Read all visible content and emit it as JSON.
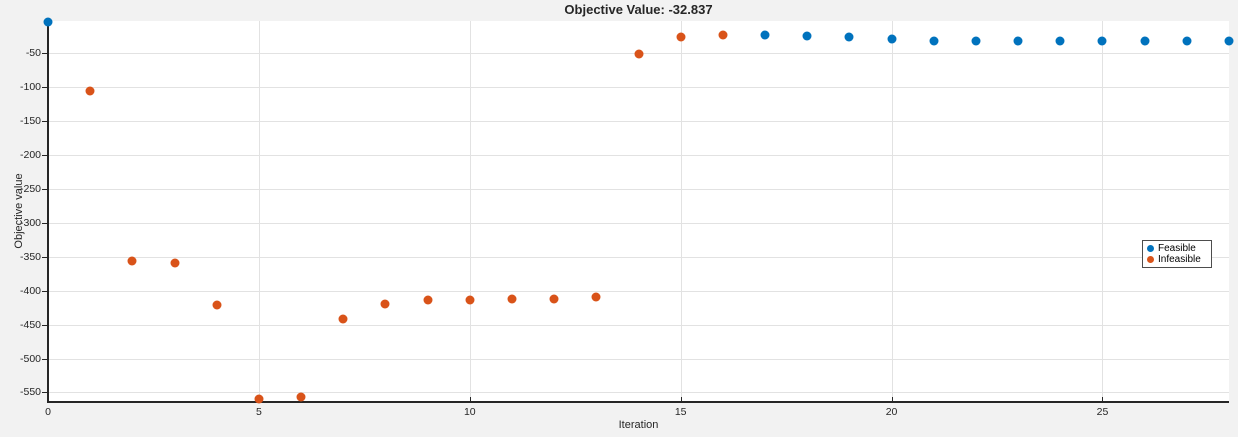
{
  "figure": {
    "title": "Objective Value: -32.837",
    "background_color": "#f2f2f2",
    "plot_background_color": "#ffffff",
    "grid_color": "#e2e2e2",
    "axis_color": "#262626",
    "feasible_color": "#0072BD",
    "infeasible_color": "#D95319"
  },
  "chart_data": {
    "type": "scatter",
    "title": "Objective Value: -32.837",
    "xlabel": "Iteration",
    "ylabel": "Objective value",
    "xlim": [
      0,
      28
    ],
    "ylim": [
      -564,
      -3
    ],
    "xticks": [
      0,
      5,
      10,
      15,
      20,
      25
    ],
    "yticks": [
      -50,
      -100,
      -150,
      -200,
      -250,
      -300,
      -350,
      -400,
      -450,
      -500,
      -550
    ],
    "grid": true,
    "legend_position": "right",
    "series": [
      {
        "name": "Feasible",
        "color": "#0072BD",
        "x": [
          0,
          17,
          18,
          19,
          20,
          21,
          22,
          23,
          24,
          25,
          26,
          27,
          28
        ],
        "y": [
          -4,
          -23,
          -25,
          -27,
          -30,
          -32.837,
          -32.837,
          -32.837,
          -32.837,
          -32.837,
          -32.837,
          -32.837,
          -32.837
        ]
      },
      {
        "name": "Infeasible",
        "color": "#D95319",
        "x": [
          1,
          2,
          3,
          4,
          5,
          6,
          7,
          8,
          9,
          10,
          11,
          12,
          13,
          14,
          15,
          16
        ],
        "y": [
          -106,
          -356,
          -360,
          -421,
          -560,
          -556,
          -442,
          -419,
          -414,
          -414,
          -413,
          -412,
          -410,
          -52,
          -27,
          -23
        ]
      }
    ]
  }
}
